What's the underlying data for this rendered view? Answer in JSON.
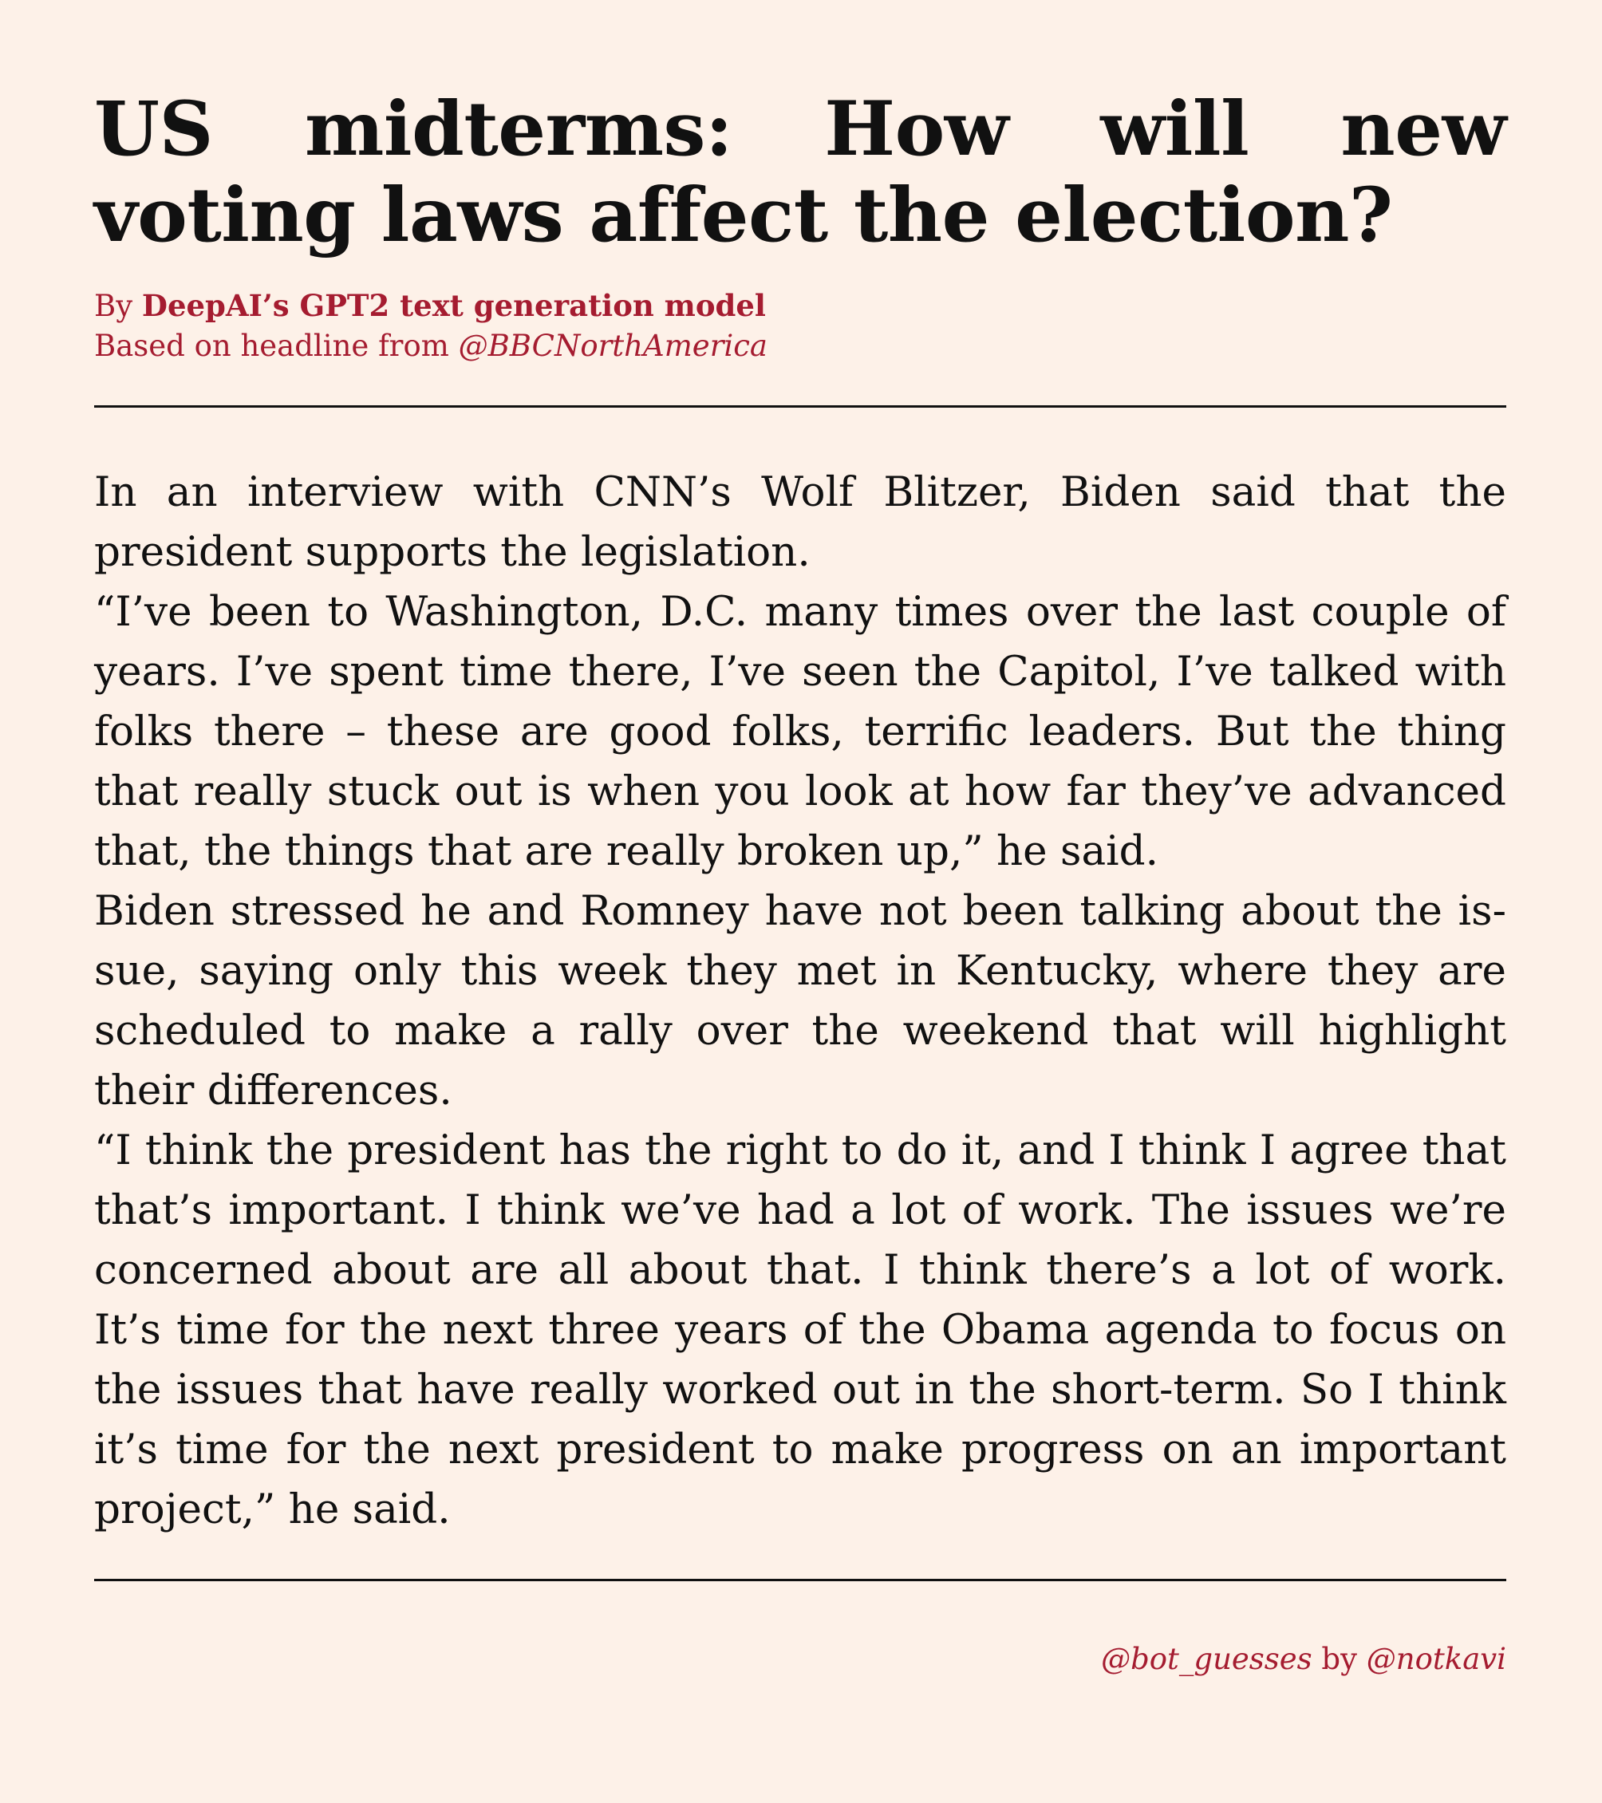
{
  "article": {
    "headline": "US midterms: How will new voting laws affect the election?",
    "byline_prefix": "By ",
    "author": "DeepAI’s GPT2 text generation model",
    "source_prefix": "Based on headline from ",
    "source_handle": "@BBCNorthAmerica",
    "paragraphs": [
      "In an interview with CNN’s Wolf Blitzer, Biden said that the president supports the legislation.",
      "“I’ve been to Washington, D.C. many times over the last couple of years.  I’ve spent time there, I’ve seen the Capitol, I’ve talked with folks there – these are good folks, terrific leaders. But the thing that really stuck out is when you look at how far they’ve advanced that, the things that are really broken up,” he said.",
      "Biden stressed he and Romney have not been talking about the is­sue, saying only this week they met in Kentucky, where they are scheduled to make a rally over the weekend that will highlight their differences.",
      "“I think the president has the right to do it, and I think I agree that that’s important.  I think we’ve had a lot of work.  The issues we’re concerned about are all about that.  I think there’s a lot of work. It’s time for the next three years of the Obama agenda to focus on the issues that have really worked out in the short-term.  So I think it’s time for the next president to make progress on an important project,” he said."
    ]
  },
  "footer": {
    "bot_handle": "@bot_guesses",
    "by_word": " by ",
    "creator_handle": "@notkavi"
  },
  "colors": {
    "background": "#fdf1e8",
    "accent": "#a51c30",
    "text": "#111111"
  }
}
